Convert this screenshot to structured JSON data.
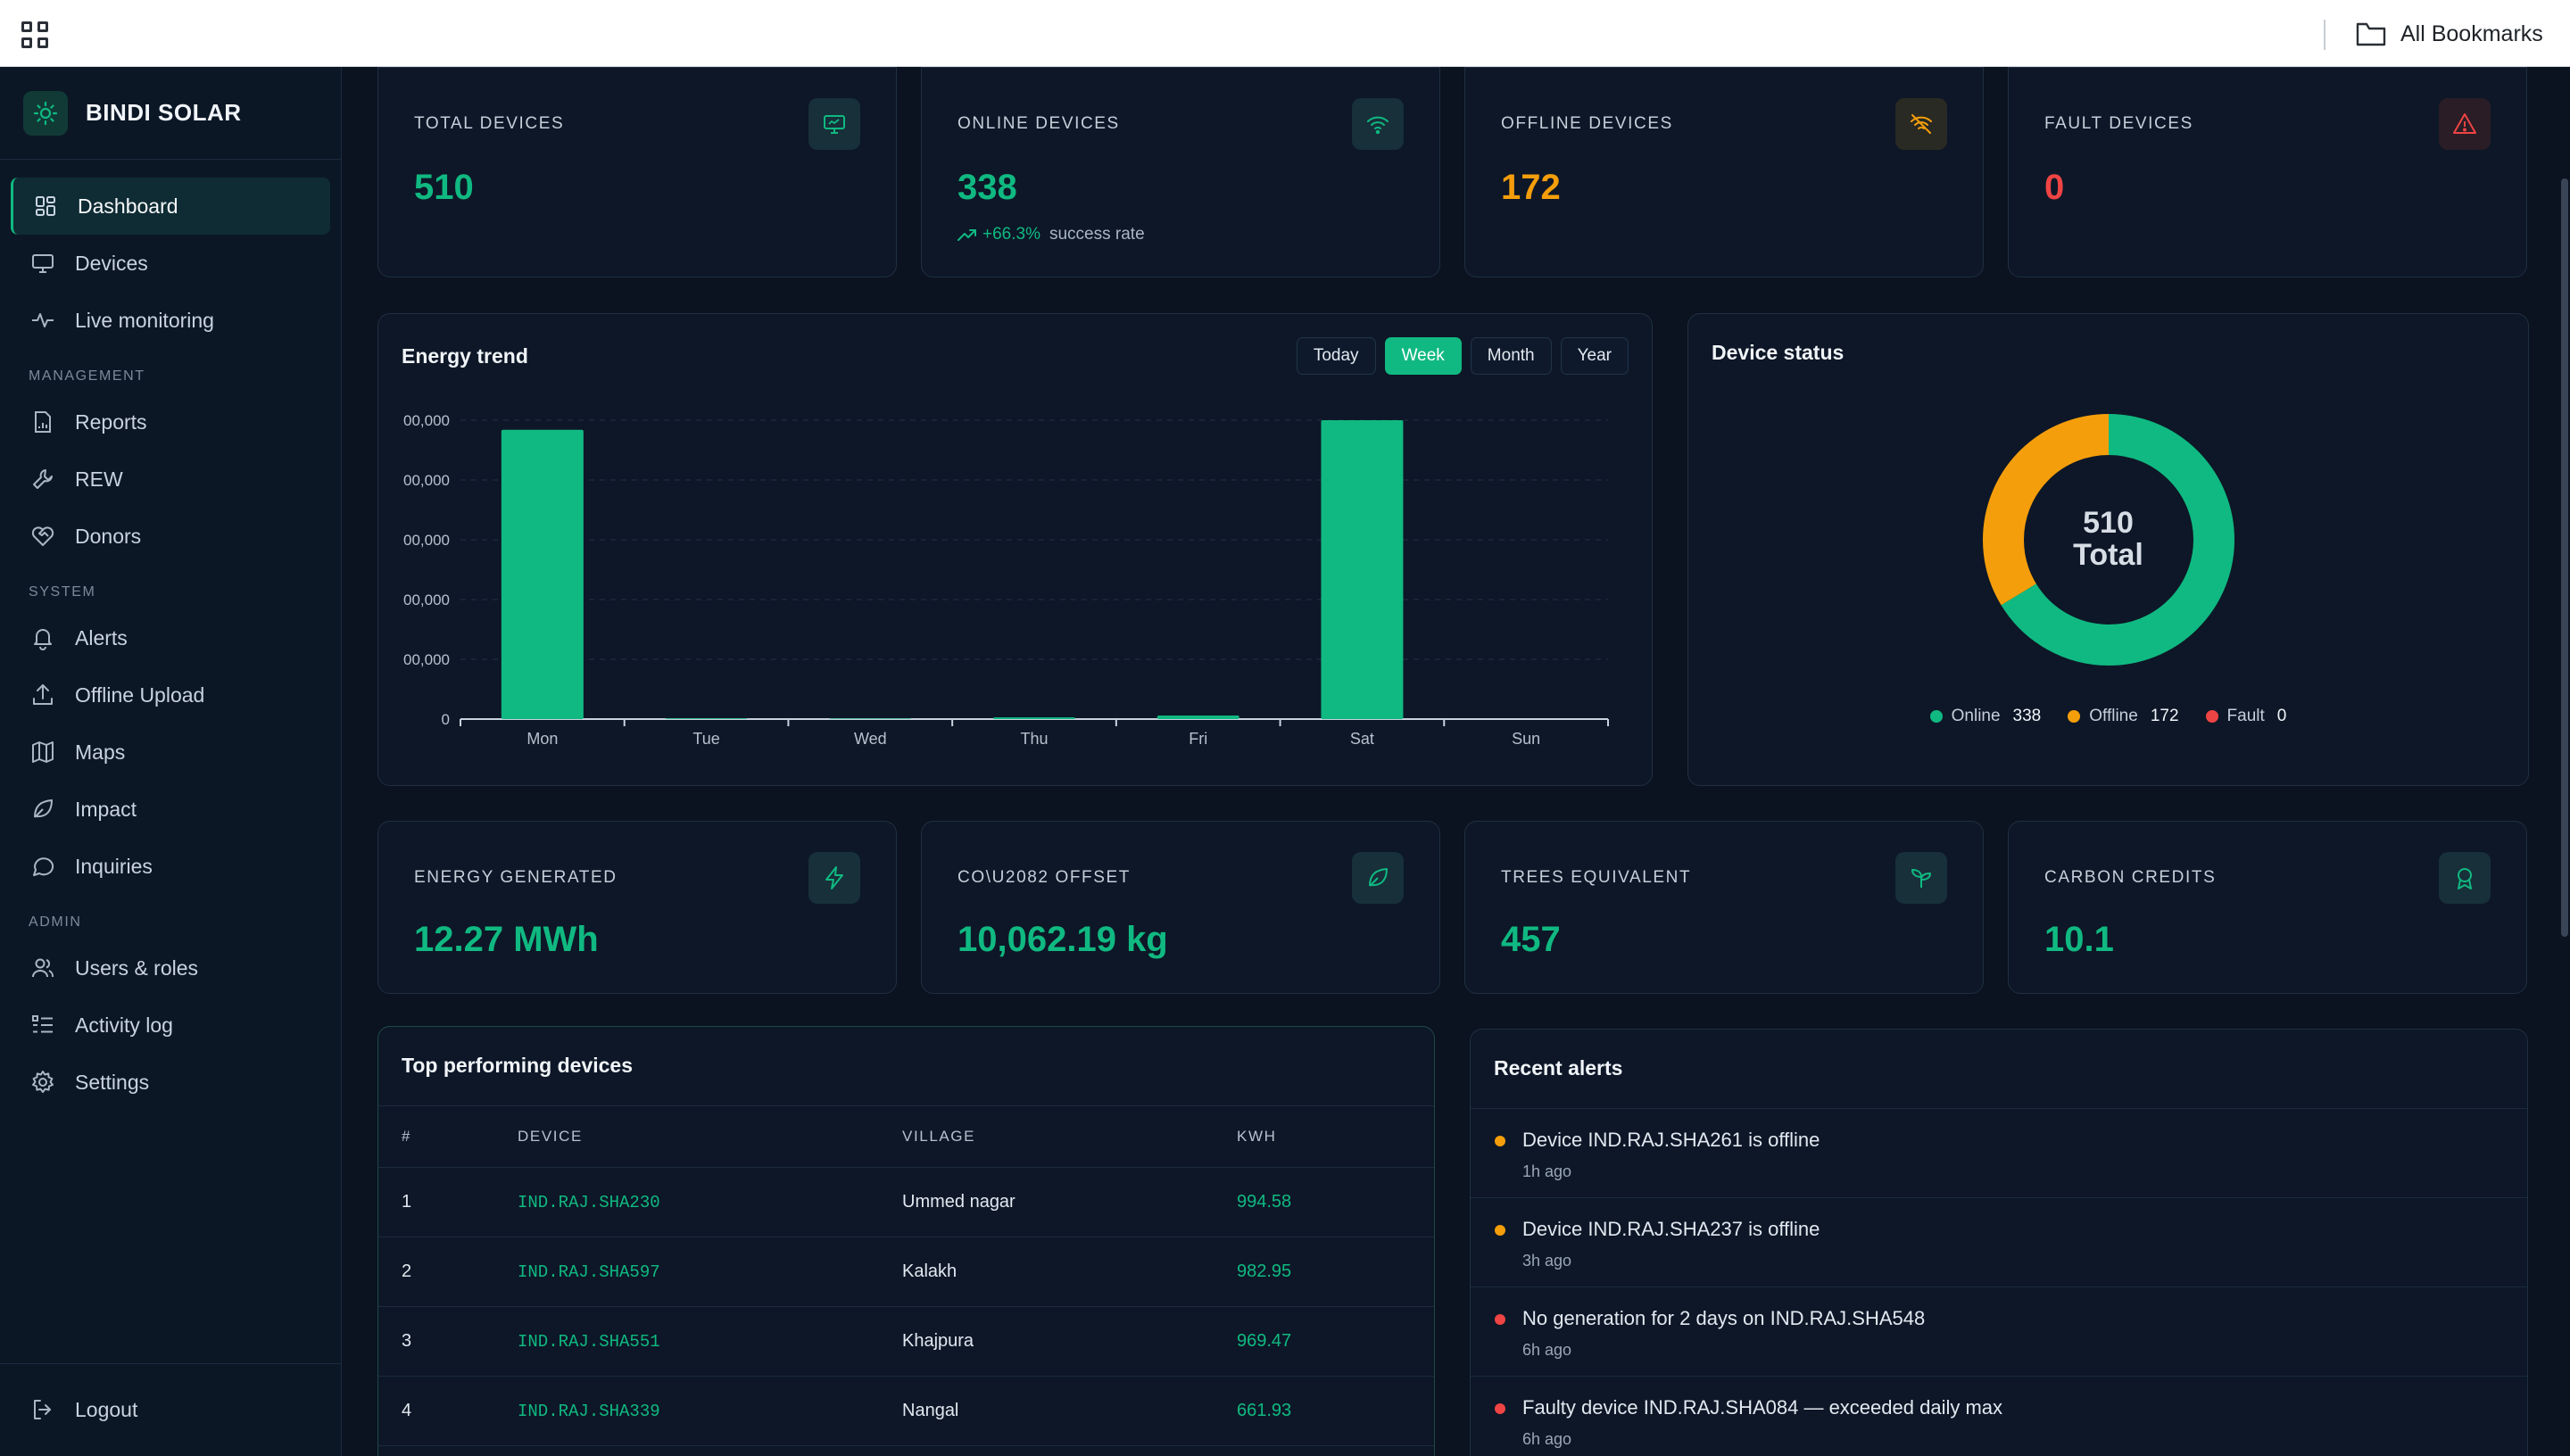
{
  "topbar": {
    "bookmarks_label": "All Bookmarks"
  },
  "brand": {
    "name": "BINDI SOLAR"
  },
  "nav": {
    "main": [
      {
        "label": "Dashboard",
        "icon": "dashboard-icon",
        "active": true
      },
      {
        "label": "Devices",
        "icon": "monitor-icon"
      },
      {
        "label": "Live monitoring",
        "icon": "pulse-icon"
      }
    ],
    "management_title": "MANAGEMENT",
    "management": [
      {
        "label": "Reports",
        "icon": "report-icon"
      },
      {
        "label": "REW",
        "icon": "wrench-icon"
      },
      {
        "label": "Donors",
        "icon": "heart-handshake-icon"
      }
    ],
    "system_title": "SYSTEM",
    "system": [
      {
        "label": "Alerts",
        "icon": "bell-icon"
      },
      {
        "label": "Offline Upload",
        "icon": "upload-icon"
      },
      {
        "label": "Maps",
        "icon": "map-icon"
      },
      {
        "label": "Impact",
        "icon": "leaf-icon"
      },
      {
        "label": "Inquiries",
        "icon": "chat-icon"
      }
    ],
    "admin_title": "ADMIN",
    "admin": [
      {
        "label": "Users & roles",
        "icon": "users-icon"
      },
      {
        "label": "Activity log",
        "icon": "list-icon"
      },
      {
        "label": "Settings",
        "icon": "gear-icon"
      }
    ],
    "logout_label": "Logout"
  },
  "stats_top": [
    {
      "label": "TOTAL DEVICES",
      "value": "510",
      "color": "#10b981",
      "icon": "monitor-icon"
    },
    {
      "label": "ONLINE DEVICES",
      "value": "338",
      "color": "#10b981",
      "icon": "wifi-icon",
      "trend": "+66.3%",
      "trend_note": "success rate"
    },
    {
      "label": "OFFLINE DEVICES",
      "value": "172",
      "color": "#f59e0b",
      "icon": "wifi-off-icon"
    },
    {
      "label": "FAULT DEVICES",
      "value": "0",
      "color": "#ef4444",
      "icon": "warning-icon"
    }
  ],
  "energy": {
    "title": "Energy trend",
    "ranges": [
      "Today",
      "Week",
      "Month",
      "Year"
    ],
    "selected_range": "Week"
  },
  "chart_data": {
    "type": "bar",
    "categories": [
      "Mon",
      "Tue",
      "Wed",
      "Thu",
      "Fri",
      "Sat",
      "Sun"
    ],
    "values": [
      4840,
      12,
      10,
      30,
      60,
      5000,
      0
    ],
    "ytick_labels": [
      "0",
      "00,000",
      "00,000",
      "00,000",
      "00,000",
      "00,000"
    ],
    "ylim": [
      0,
      5000
    ],
    "bar_color": "#10b981",
    "grid": true
  },
  "device_status": {
    "title": "Device status",
    "total": "510",
    "total_label": "Total",
    "segments": [
      {
        "name": "Online",
        "value": 338,
        "color": "#10b981"
      },
      {
        "name": "Offline",
        "value": 172,
        "color": "#f59e0b"
      },
      {
        "name": "Fault",
        "value": 0,
        "color": "#ef4444"
      }
    ]
  },
  "stats_impact": [
    {
      "label": "ENERGY GENERATED",
      "value": "12.27 MWh",
      "icon": "bolt-icon"
    },
    {
      "label": "CO\\U2082 OFFSET",
      "value": "10,062.19 kg",
      "icon": "leaf-icon"
    },
    {
      "label": "TREES EQUIVALENT",
      "value": "457",
      "icon": "sprout-icon"
    },
    {
      "label": "CARBON CREDITS",
      "value": "10.1",
      "icon": "award-icon"
    }
  ],
  "top_devices": {
    "title": "Top performing devices",
    "headers": [
      "#",
      "DEVICE",
      "VILLAGE",
      "KWH"
    ],
    "rows": [
      {
        "rank": "1",
        "device": "IND.RAJ.SHA230",
        "village": "Ummed nagar",
        "kwh": "994.58"
      },
      {
        "rank": "2",
        "device": "IND.RAJ.SHA597",
        "village": "Kalakh",
        "kwh": "982.95"
      },
      {
        "rank": "3",
        "device": "IND.RAJ.SHA551",
        "village": "Khajpura",
        "kwh": "969.47"
      },
      {
        "rank": "4",
        "device": "IND.RAJ.SHA339",
        "village": "Nangal",
        "kwh": "661.93"
      }
    ]
  },
  "recent_alerts": {
    "title": "Recent alerts",
    "items": [
      {
        "message": "Device IND.RAJ.SHA261 is offline",
        "time": "1h ago",
        "color": "#f59e0b"
      },
      {
        "message": "Device IND.RAJ.SHA237 is offline",
        "time": "3h ago",
        "color": "#f59e0b"
      },
      {
        "message": "No generation for 2 days on IND.RAJ.SHA548",
        "time": "6h ago",
        "color": "#ef4444"
      },
      {
        "message": "Faulty device IND.RAJ.SHA084 — exceeded daily max",
        "time": "6h ago",
        "color": "#ef4444"
      }
    ]
  }
}
